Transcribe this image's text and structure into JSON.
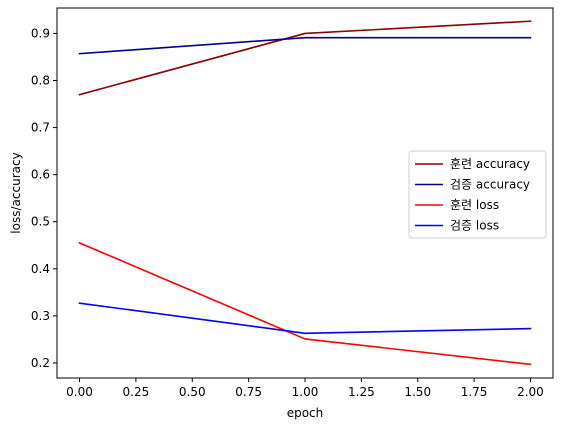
{
  "chart_data": {
    "type": "line",
    "xlabel": "epoch",
    "ylabel": "loss/accuracy",
    "xlim": [
      -0.1,
      2.1
    ],
    "ylim": [
      0.168,
      0.954
    ],
    "xticks": [
      0.0,
      0.25,
      0.5,
      0.75,
      1.0,
      1.25,
      1.5,
      1.75,
      2.0
    ],
    "xtick_labels": [
      "0.00",
      "0.25",
      "0.50",
      "0.75",
      "1.00",
      "1.25",
      "1.50",
      "1.75",
      "2.00"
    ],
    "yticks": [
      0.2,
      0.3,
      0.4,
      0.5,
      0.6,
      0.7,
      0.8,
      0.9
    ],
    "ytick_labels": [
      "0.2",
      "0.3",
      "0.4",
      "0.5",
      "0.6",
      "0.7",
      "0.8",
      "0.9"
    ],
    "grid": false,
    "legend_position": "center-right",
    "x": [
      0,
      1,
      2
    ],
    "series": [
      {
        "name": "훈련 accuracy",
        "color": "#8b0000",
        "values": [
          0.77,
          0.9,
          0.926
        ]
      },
      {
        "name": "검증 accuracy",
        "color": "#00008b",
        "values": [
          0.857,
          0.891,
          0.891
        ]
      },
      {
        "name": "훈련 loss",
        "color": "#ff0000",
        "values": [
          0.455,
          0.251,
          0.197
        ]
      },
      {
        "name": "검증 loss",
        "color": "#0000ff",
        "values": [
          0.327,
          0.263,
          0.273
        ]
      }
    ]
  }
}
